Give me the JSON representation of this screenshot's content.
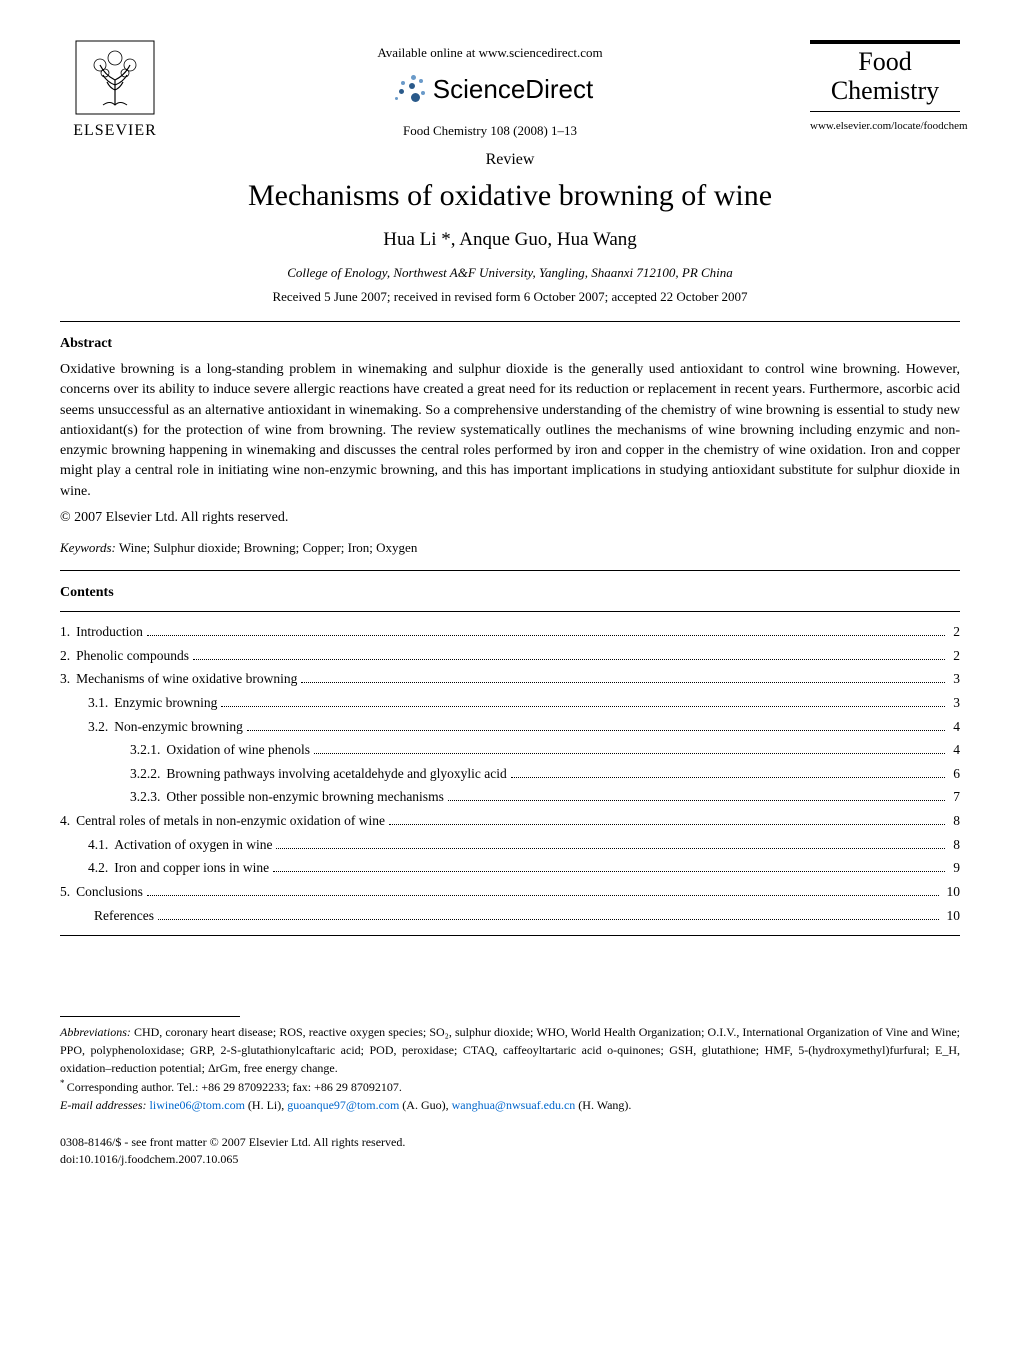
{
  "header": {
    "publisher": "ELSEVIER",
    "available_online": "Available online at www.sciencedirect.com",
    "platform": "ScienceDirect",
    "journal_ref": "Food Chemistry 108 (2008) 1–13",
    "journal_name_line1": "Food",
    "journal_name_line2": "Chemistry",
    "journal_url": "www.elsevier.com/locate/foodchem"
  },
  "article": {
    "type": "Review",
    "title": "Mechanisms of oxidative browning of wine",
    "authors": "Hua Li *, Anque Guo, Hua Wang",
    "affiliation": "College of Enology, Northwest A&F University, Yangling, Shaanxi 712100, PR China",
    "dates": "Received 5 June 2007; received in revised form 6 October 2007; accepted 22 October 2007"
  },
  "abstract": {
    "heading": "Abstract",
    "text": "Oxidative browning is a long-standing problem in winemaking and sulphur dioxide is the generally used antioxidant to control wine browning. However, concerns over its ability to induce severe allergic reactions have created a great need for its reduction or replacement in recent years. Furthermore, ascorbic acid seems unsuccessful as an alternative antioxidant in winemaking. So a comprehensive understanding of the chemistry of wine browning is essential to study new antioxidant(s) for the protection of wine from browning. The review systematically outlines the mechanisms of wine browning including enzymic and non-enzymic browning happening in winemaking and discusses the central roles performed by iron and copper in the chemistry of wine oxidation. Iron and copper might play a central role in initiating wine non-enzymic browning, and this has important implications in studying antioxidant substitute for sulphur dioxide in wine.",
    "copyright": "© 2007 Elsevier Ltd. All rights reserved."
  },
  "keywords": {
    "label": "Keywords:",
    "text": " Wine; Sulphur dioxide; Browning; Copper; Iron; Oxygen"
  },
  "contents": {
    "heading": "Contents",
    "items": [
      {
        "num": "1.",
        "label": "Introduction",
        "page": "2",
        "indent": 0
      },
      {
        "num": "2.",
        "label": "Phenolic compounds",
        "page": "2",
        "indent": 0
      },
      {
        "num": "3.",
        "label": "Mechanisms of wine oxidative browning",
        "page": "3",
        "indent": 0
      },
      {
        "num": "3.1.",
        "label": "Enzymic browning",
        "page": "3",
        "indent": 1
      },
      {
        "num": "3.2.",
        "label": "Non-enzymic browning",
        "page": "4",
        "indent": 1
      },
      {
        "num": "3.2.1.",
        "label": "Oxidation of wine phenols",
        "page": "4",
        "indent": 2
      },
      {
        "num": "3.2.2.",
        "label": "Browning pathways involving acetaldehyde and glyoxylic acid",
        "page": "6",
        "indent": 2
      },
      {
        "num": "3.2.3.",
        "label": "Other possible non-enzymic browning mechanisms",
        "page": "7",
        "indent": 2
      },
      {
        "num": "4.",
        "label": "Central roles of metals in non-enzymic oxidation of wine",
        "page": "8",
        "indent": 0
      },
      {
        "num": "4.1.",
        "label": "Activation of oxygen in wine",
        "page": "8",
        "indent": 1
      },
      {
        "num": "4.2.",
        "label": "Iron and copper ions in wine",
        "page": "9",
        "indent": 1
      },
      {
        "num": "5.",
        "label": "Conclusions",
        "page": "10",
        "indent": 0
      },
      {
        "num": "",
        "label": "References",
        "page": "10",
        "indent": 1
      }
    ]
  },
  "footnotes": {
    "abbrev_label": "Abbreviations:",
    "abbrev_text": " CHD, coronary heart disease; ROS, reactive oxygen species; SO₂, sulphur dioxide; WHO, World Health Organization; O.I.V., International Organization of Vine and Wine; PPO, polyphenoloxidase; GRP, 2-S-glutathionylcaftaric acid; POD, peroxidase; CTAQ, caffeoyltartaric acid o-quinones; GSH, glutathione; HMF, 5-(hydroxymethyl)furfural; E_H, oxidation–reduction potential; ΔrGm, free energy change.",
    "corr_label": "* ",
    "corr_text": "Corresponding author. Tel.: +86 29 87092233; fax: +86 29 87092107.",
    "email_label": "E-mail addresses: ",
    "email1": "liwine06@tom.com",
    "email1_after": " (H. Li), ",
    "email2": "guoanque97@tom.com",
    "email2_after": " (A. Guo), ",
    "email3": "wanghua@nwsuaf.edu.cn",
    "email3_after": " (H. Wang)."
  },
  "bottom": {
    "issn": "0308-8146/$ - see front matter © 2007 Elsevier Ltd. All rights reserved.",
    "doi": "doi:10.1016/j.foodchem.2007.10.065"
  },
  "colors": {
    "text": "#000000",
    "link": "#0066cc",
    "background": "#ffffff",
    "sd_dot_dark": "#2a5a8a",
    "sd_dot_light": "#6a9ac9"
  }
}
